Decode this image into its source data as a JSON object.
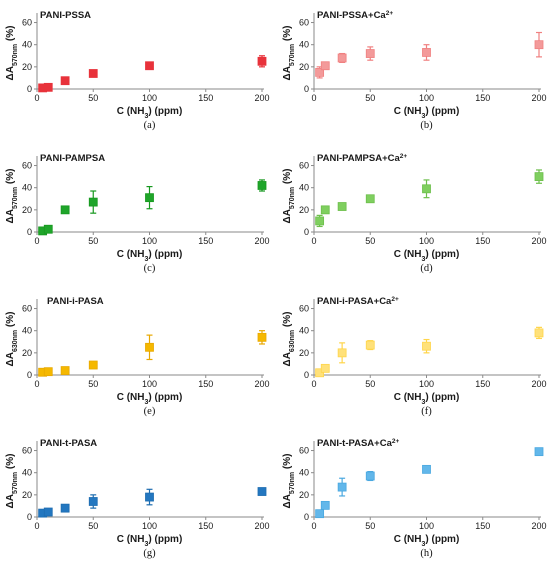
{
  "figure": {
    "panels": [
      {
        "id": "a",
        "caption": "(a)",
        "title_main": "PANI-PSSA",
        "title_sup": "",
        "ylabel_sub": "570nm",
        "marker_color": "#e8323b",
        "marker_fill": "#e8323b"
      },
      {
        "id": "b",
        "caption": "(b)",
        "title_main": "PANI-PSSA+Ca",
        "title_sup": "2+",
        "ylabel_sub": "570nm",
        "marker_color": "#f08080",
        "marker_fill": "#f39a9a"
      },
      {
        "id": "c",
        "caption": "(c)",
        "title_main": "PANI-PAMPSA",
        "title_sup": "",
        "ylabel_sub": "570nm",
        "marker_color": "#17981f",
        "marker_fill": "#1fa52a"
      },
      {
        "id": "d",
        "caption": "(d)",
        "title_main": "PANI-PAMPSA+Ca",
        "title_sup": "2+",
        "ylabel_sub": "570nm",
        "marker_color": "#6dbf4b",
        "marker_fill": "#7fcf5f"
      },
      {
        "id": "e",
        "caption": "(e)",
        "title_main": "PANI-i-PASA",
        "title_sup": "",
        "ylabel_sub": "630nm",
        "marker_color": "#e8a800",
        "marker_fill": "#f5b800"
      },
      {
        "id": "f",
        "caption": "(f)",
        "title_main": "PANI-i-PASA+Ca",
        "title_sup": "2+",
        "ylabel_sub": "630nm",
        "marker_color": "#ffd54a",
        "marker_fill": "#ffe17a"
      },
      {
        "id": "g",
        "caption": "(g)",
        "title_main": "PANI-t-PASA",
        "title_sup": "",
        "ylabel_sub": "570nm",
        "marker_color": "#1e6db0",
        "marker_fill": "#2377c0"
      },
      {
        "id": "h",
        "caption": "(h)",
        "title_main": "PANI-t-PASA+Ca",
        "title_sup": "2+",
        "ylabel_sub": "570nm",
        "marker_color": "#4aa8e0",
        "marker_fill": "#62b7ea"
      }
    ],
    "ylabel_prefix": "ΔA",
    "ylabel_suffix": " (%)",
    "xlabel_main": "C (NH",
    "xlabel_sub": "3",
    "xlabel_suffix": ") (ppm)",
    "xticks": [
      0,
      50,
      100,
      150,
      200
    ],
    "yticks": [
      0,
      20,
      40,
      60
    ]
  },
  "chart_data": [
    {
      "type": "scatter",
      "title": "PANI-PSSA",
      "xlabel": "C (NH3) (ppm)",
      "ylabel": "ΔA570nm (%)",
      "xlim": [
        0,
        200
      ],
      "ylim": [
        0,
        65
      ],
      "x": [
        5,
        10,
        25,
        50,
        100,
        200
      ],
      "y": [
        1,
        1.5,
        7.5,
        14,
        21,
        25
      ],
      "err": [
        0,
        0,
        0,
        0,
        0,
        5
      ]
    },
    {
      "type": "scatter",
      "title": "PANI-PSSA+Ca2+",
      "xlabel": "C (NH3) (ppm)",
      "ylabel": "ΔA570nm (%)",
      "xlim": [
        0,
        200
      ],
      "ylim": [
        0,
        65
      ],
      "x": [
        5,
        10,
        25,
        50,
        100,
        200
      ],
      "y": [
        15,
        21,
        28,
        32,
        33,
        40
      ],
      "err": [
        5,
        0,
        4,
        6,
        7,
        11
      ]
    },
    {
      "type": "scatter",
      "title": "PANI-PAMPSA",
      "xlabel": "C (NH3) (ppm)",
      "ylabel": "ΔA570nm (%)",
      "xlim": [
        0,
        200
      ],
      "ylim": [
        0,
        65
      ],
      "x": [
        5,
        10,
        25,
        50,
        100,
        200
      ],
      "y": [
        1,
        2.5,
        20,
        27,
        31,
        42
      ],
      "err": [
        0,
        0,
        0,
        10,
        10,
        5
      ]
    },
    {
      "type": "scatter",
      "title": "PANI-PAMPSA+Ca2+",
      "xlabel": "C (NH3) (ppm)",
      "ylabel": "ΔA570nm (%)",
      "xlim": [
        0,
        200
      ],
      "ylim": [
        0,
        65
      ],
      "x": [
        5,
        10,
        25,
        50,
        100,
        200
      ],
      "y": [
        10,
        20,
        23,
        30,
        39,
        50
      ],
      "err": [
        5,
        0,
        0,
        0,
        8,
        6
      ]
    },
    {
      "type": "scatter",
      "title": "PANI-i-PASA",
      "xlabel": "C (NH3) (ppm)",
      "ylabel": "ΔA630nm (%)",
      "xlim": [
        0,
        200
      ],
      "ylim": [
        0,
        65
      ],
      "x": [
        5,
        10,
        25,
        50,
        100,
        200
      ],
      "y": [
        2.5,
        3,
        4,
        9,
        25,
        34
      ],
      "err": [
        0,
        0,
        0,
        0,
        11,
        6
      ]
    },
    {
      "type": "scatter",
      "title": "PANI-i-PASA+Ca2+",
      "xlabel": "C (NH3) (ppm)",
      "ylabel": "ΔA630nm (%)",
      "xlim": [
        0,
        200
      ],
      "ylim": [
        0,
        65
      ],
      "x": [
        5,
        10,
        25,
        50,
        100,
        200
      ],
      "y": [
        2,
        6,
        20,
        27,
        26,
        38
      ],
      "err": [
        0,
        0,
        9,
        4,
        6,
        5
      ]
    },
    {
      "type": "scatter",
      "title": "PANI-t-PASA",
      "xlabel": "C (NH3) (ppm)",
      "ylabel": "ΔA570nm (%)",
      "xlim": [
        0,
        200
      ],
      "ylim": [
        0,
        65
      ],
      "x": [
        5,
        10,
        25,
        50,
        100,
        200
      ],
      "y": [
        3.5,
        4.5,
        8,
        14,
        18,
        23
      ],
      "err": [
        0,
        0,
        0,
        6,
        7,
        3
      ]
    },
    {
      "type": "scatter",
      "title": "PANI-t-PASA+Ca2+",
      "xlabel": "C (NH3) (ppm)",
      "ylabel": "ΔA570nm (%)",
      "xlim": [
        0,
        200
      ],
      "ylim": [
        0,
        65
      ],
      "x": [
        5,
        10,
        25,
        50,
        100,
        200
      ],
      "y": [
        3,
        10.5,
        27,
        37,
        43,
        59
      ],
      "err": [
        0,
        0,
        8,
        4,
        0,
        0
      ]
    }
  ]
}
